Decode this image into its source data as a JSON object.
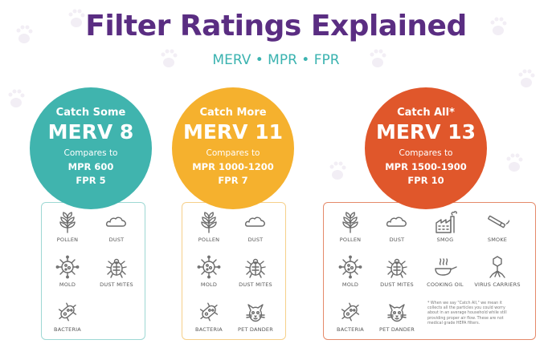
{
  "title": "Filter Ratings Explained",
  "subtitle": "MERV • MPR • FPR",
  "colors": {
    "title": "#5a2d82",
    "subtitle": "#3bb3b0",
    "teal": "#40b4ae",
    "yellow": "#f5b12e",
    "orange": "#e0572b"
  },
  "ratings": [
    {
      "catch": "Catch Some",
      "merv": "MERV 8",
      "compares": "Compares to",
      "mpr": "MPR 600",
      "fpr": "FPR 5",
      "color": "#40b4ae",
      "items": [
        {
          "icon": "pollen-icon",
          "label": "POLLEN"
        },
        {
          "icon": "dust-icon",
          "label": "DUST"
        },
        {
          "icon": "mold-icon",
          "label": "MOLD"
        },
        {
          "icon": "dust-mites-icon",
          "label": "DUST MITES"
        },
        {
          "icon": "bacteria-icon",
          "label": "BACTERIA"
        }
      ]
    },
    {
      "catch": "Catch More",
      "merv": "MERV 11",
      "compares": "Compares to",
      "mpr": "MPR 1000-1200",
      "fpr": "FPR 7",
      "color": "#f5b12e",
      "items": [
        {
          "icon": "pollen-icon",
          "label": "POLLEN"
        },
        {
          "icon": "dust-icon",
          "label": "DUST"
        },
        {
          "icon": "mold-icon",
          "label": "MOLD"
        },
        {
          "icon": "dust-mites-icon",
          "label": "DUST MITES"
        },
        {
          "icon": "bacteria-icon",
          "label": "BACTERIA"
        },
        {
          "icon": "cat-icon",
          "label": "PET DANDER"
        }
      ]
    },
    {
      "catch": "Catch All*",
      "merv": "MERV 13",
      "compares": "Compares to",
      "mpr": "MPR 1500-1900",
      "fpr": "FPR 10",
      "color": "#e0572b",
      "items": [
        {
          "icon": "pollen-icon",
          "label": "POLLEN"
        },
        {
          "icon": "dust-icon",
          "label": "DUST"
        },
        {
          "icon": "factory-icon",
          "label": "SMOG"
        },
        {
          "icon": "cigarette-icon",
          "label": "SMOKE"
        },
        {
          "icon": "mold-icon",
          "label": "MOLD"
        },
        {
          "icon": "dust-mites-icon",
          "label": "DUST MITES"
        },
        {
          "icon": "pan-icon",
          "label": "COOKING OIL"
        },
        {
          "icon": "virus-icon",
          "label": "VIRUS CARRIERS"
        },
        {
          "icon": "bacteria-icon",
          "label": "BACTERIA"
        },
        {
          "icon": "cat-icon",
          "label": "PET DANDER"
        }
      ],
      "footnote": "* When we say \"Catch All,\" we mean it collects all the particles you could worry about in an average household while still providing proper air flow. These are not medical grade HEPA filters."
    }
  ]
}
